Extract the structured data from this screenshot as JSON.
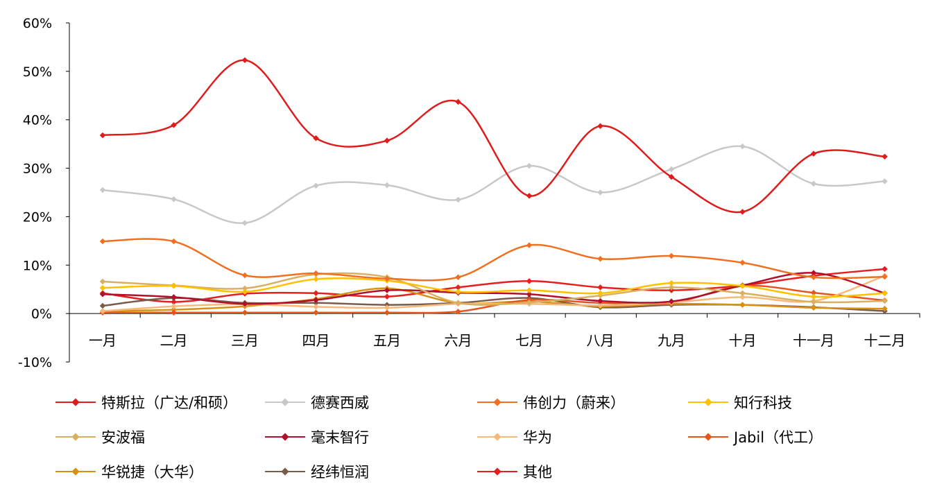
{
  "chart_data": {
    "type": "line",
    "categories": [
      "一月",
      "二月",
      "三月",
      "四月",
      "五月",
      "六月",
      "七月",
      "八月",
      "九月",
      "十月",
      "十一月",
      "十二月"
    ],
    "y_ticks": [
      "-10%",
      "0%",
      "10%",
      "20%",
      "30%",
      "40%",
      "50%",
      "60%"
    ],
    "ylim": [
      -10,
      60
    ],
    "grid": false,
    "legend_position": "bottom",
    "series": [
      {
        "name": "特斯拉（广达/和硕）",
        "color": "#E01B1B",
        "values": [
          36.8,
          38.9,
          52.3,
          36.2,
          35.7,
          43.7,
          24.3,
          38.7,
          28.2,
          21.0,
          33.0,
          32.4
        ]
      },
      {
        "name": "德赛西威",
        "color": "#C8C8C8",
        "values": [
          25.5,
          23.6,
          18.7,
          26.4,
          26.5,
          23.5,
          30.5,
          25.0,
          29.8,
          34.5,
          26.8,
          27.3
        ]
      },
      {
        "name": "伟创力（蔚来）",
        "color": "#F07020",
        "values": [
          14.9,
          14.9,
          7.9,
          8.3,
          7.2,
          7.5,
          14.1,
          11.3,
          11.9,
          10.5,
          7.5,
          7.6
        ]
      },
      {
        "name": "知行科技",
        "color": "#FFC000",
        "values": [
          5.3,
          5.7,
          4.5,
          7.1,
          6.8,
          4.5,
          4.8,
          4.2,
          6.3,
          5.7,
          3.5,
          4.2
        ]
      },
      {
        "name": "安波福",
        "color": "#D9B060",
        "values": [
          6.6,
          5.8,
          5.2,
          8.1,
          7.5,
          2.2,
          2.3,
          3.7,
          5.4,
          4.2,
          2.4,
          2.6
        ]
      },
      {
        "name": "毫末智行",
        "color": "#B0102A",
        "values": [
          4.0,
          3.4,
          2.0,
          2.8,
          4.8,
          4.3,
          4.0,
          2.6,
          2.5,
          5.8,
          8.4,
          4.2
        ]
      },
      {
        "name": "华为",
        "color": "#F7B97A",
        "values": [
          0.5,
          1.5,
          1.9,
          1.4,
          1.2,
          2.0,
          2.0,
          1.7,
          2.3,
          3.4,
          2.6,
          7.8
        ]
      },
      {
        "name": "Jabil（代工）",
        "color": "#E8541E",
        "values": [
          0.2,
          0.2,
          0.2,
          0.2,
          0.2,
          0.4,
          2.8,
          2.2,
          2.2,
          5.7,
          4.3,
          2.7
        ]
      },
      {
        "name": "华锐捷（大华）",
        "color": "#D89010",
        "values": [
          0.5,
          0.8,
          1.5,
          3.0,
          5.2,
          2.2,
          2.5,
          1.5,
          2.0,
          1.8,
          1.2,
          1.0
        ]
      },
      {
        "name": "经纬恒润",
        "color": "#7A5A4A",
        "values": [
          1.6,
          3.2,
          2.2,
          2.2,
          1.8,
          2.2,
          3.2,
          1.3,
          1.8,
          1.8,
          1.3,
          0.5
        ]
      },
      {
        "name": "其他",
        "color": "#E51E1E",
        "values": [
          4.2,
          2.4,
          4.1,
          4.2,
          3.5,
          5.4,
          6.7,
          5.4,
          4.8,
          5.8,
          7.8,
          9.2
        ]
      }
    ]
  }
}
